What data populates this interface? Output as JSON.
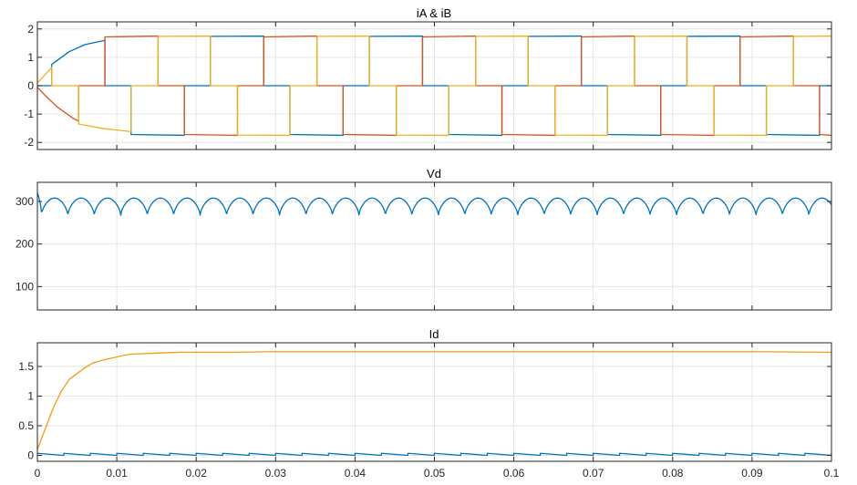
{
  "figure": {
    "xticks": [
      "0",
      "0.01",
      "0.02",
      "0.03",
      "0.04",
      "0.05",
      "0.06",
      "0.07",
      "0.08",
      "0.09",
      "0.1"
    ]
  },
  "colors": {
    "blue": "#0072BD",
    "red": "#D95319",
    "yellow": "#EDB120",
    "orange": "#F39C12",
    "grid": "#e6e6e6",
    "axis": "#262626"
  },
  "chart_data": [
    {
      "type": "line",
      "title": "iA & iB",
      "xlim": [
        0,
        0.1
      ],
      "ylim": [
        -2.25,
        2.25
      ],
      "yticks": [
        2,
        1,
        0,
        -1,
        -2
      ],
      "yticklabels": [
        "2",
        "1",
        "0",
        "-1",
        "-2"
      ],
      "grid": true,
      "series": [
        {
          "color": "#0072BD",
          "points": [
            [
              0,
              0
            ],
            [
              0.0018,
              0
            ],
            [
              0.0018,
              0.75
            ],
            [
              0.004,
              1.2
            ],
            [
              0.006,
              1.45
            ],
            [
              0.0085,
              1.6
            ],
            [
              0.0085,
              0
            ],
            [
              0.0118,
              0
            ],
            [
              0.0118,
              -1.72
            ],
            [
              0.0185,
              -1.75
            ],
            [
              0.0185,
              0
            ],
            [
              0.0218,
              0
            ],
            [
              0.0218,
              1.74
            ],
            [
              0.0285,
              1.75
            ],
            [
              0.0285,
              0
            ],
            [
              0.0318,
              0
            ],
            [
              0.0318,
              -1.72
            ],
            [
              0.0385,
              -1.75
            ],
            [
              0.0385,
              0
            ],
            [
              0.0418,
              0
            ],
            [
              0.0418,
              1.74
            ],
            [
              0.0485,
              1.75
            ],
            [
              0.0485,
              0
            ],
            [
              0.0518,
              0
            ],
            [
              0.0518,
              -1.72
            ],
            [
              0.0585,
              -1.75
            ],
            [
              0.0585,
              0
            ],
            [
              0.0618,
              0
            ],
            [
              0.0618,
              1.74
            ],
            [
              0.0685,
              1.75
            ],
            [
              0.0685,
              0
            ],
            [
              0.0718,
              0
            ],
            [
              0.0718,
              -1.72
            ],
            [
              0.0785,
              -1.75
            ],
            [
              0.0785,
              0
            ],
            [
              0.0818,
              0
            ],
            [
              0.0818,
              1.74
            ],
            [
              0.0885,
              1.75
            ],
            [
              0.0885,
              0
            ],
            [
              0.0918,
              0
            ],
            [
              0.0918,
              -1.72
            ],
            [
              0.0985,
              -1.75
            ],
            [
              0.0985,
              0
            ],
            [
              0.1,
              0
            ]
          ]
        },
        {
          "color": "#D95319",
          "points": [
            [
              0,
              -0.05
            ],
            [
              0.001,
              -0.35
            ],
            [
              0.0025,
              -0.75
            ],
            [
              0.0045,
              -1.15
            ],
            [
              0.0052,
              -1.25
            ],
            [
              0.0052,
              0
            ],
            [
              0.0085,
              0
            ],
            [
              0.0085,
              1.72
            ],
            [
              0.0152,
              1.75
            ],
            [
              0.0152,
              0
            ],
            [
              0.0185,
              0
            ],
            [
              0.0185,
              -1.72
            ],
            [
              0.0252,
              -1.75
            ],
            [
              0.0252,
              0
            ],
            [
              0.0285,
              0
            ],
            [
              0.0285,
              1.72
            ],
            [
              0.0352,
              1.75
            ],
            [
              0.0352,
              0
            ],
            [
              0.0385,
              0
            ],
            [
              0.0385,
              -1.72
            ],
            [
              0.0452,
              -1.75
            ],
            [
              0.0452,
              0
            ],
            [
              0.0485,
              0
            ],
            [
              0.0485,
              1.72
            ],
            [
              0.0552,
              1.75
            ],
            [
              0.0552,
              0
            ],
            [
              0.0585,
              0
            ],
            [
              0.0585,
              -1.72
            ],
            [
              0.0652,
              -1.75
            ],
            [
              0.0652,
              0
            ],
            [
              0.0685,
              0
            ],
            [
              0.0685,
              1.72
            ],
            [
              0.0752,
              1.75
            ],
            [
              0.0752,
              0
            ],
            [
              0.0785,
              0
            ],
            [
              0.0785,
              -1.72
            ],
            [
              0.0852,
              -1.75
            ],
            [
              0.0852,
              0
            ],
            [
              0.0885,
              0
            ],
            [
              0.0885,
              1.72
            ],
            [
              0.0952,
              1.75
            ],
            [
              0.0952,
              0
            ],
            [
              0.0985,
              0
            ],
            [
              0.0985,
              -1.72
            ],
            [
              0.1,
              -1.75
            ]
          ]
        },
        {
          "color": "#EDB120",
          "points": [
            [
              0,
              0.1
            ],
            [
              0.001,
              0.4
            ],
            [
              0.0018,
              0.65
            ],
            [
              0.0018,
              0
            ],
            [
              0.0052,
              0
            ],
            [
              0.0052,
              -1.35
            ],
            [
              0.008,
              -1.5
            ],
            [
              0.0118,
              -1.62
            ],
            [
              0.0118,
              0
            ],
            [
              0.0152,
              0
            ],
            [
              0.0152,
              1.74
            ],
            [
              0.0218,
              1.75
            ],
            [
              0.0218,
              0
            ],
            [
              0.0252,
              0
            ],
            [
              0.0252,
              -1.74
            ],
            [
              0.0318,
              -1.75
            ],
            [
              0.0318,
              0
            ],
            [
              0.0352,
              0
            ],
            [
              0.0352,
              1.74
            ],
            [
              0.0418,
              1.75
            ],
            [
              0.0418,
              0
            ],
            [
              0.0452,
              0
            ],
            [
              0.0452,
              -1.74
            ],
            [
              0.0518,
              -1.75
            ],
            [
              0.0518,
              0
            ],
            [
              0.0552,
              0
            ],
            [
              0.0552,
              1.74
            ],
            [
              0.0618,
              1.75
            ],
            [
              0.0618,
              0
            ],
            [
              0.0652,
              0
            ],
            [
              0.0652,
              -1.74
            ],
            [
              0.0718,
              -1.75
            ],
            [
              0.0718,
              0
            ],
            [
              0.0752,
              0
            ],
            [
              0.0752,
              1.74
            ],
            [
              0.0818,
              1.75
            ],
            [
              0.0818,
              0
            ],
            [
              0.0852,
              0
            ],
            [
              0.0852,
              -1.74
            ],
            [
              0.0918,
              -1.75
            ],
            [
              0.0918,
              0
            ],
            [
              0.0952,
              0
            ],
            [
              0.0952,
              1.74
            ],
            [
              0.1,
              1.75
            ]
          ]
        }
      ]
    },
    {
      "type": "line",
      "title": "Vd",
      "xlim": [
        0,
        0.1
      ],
      "ylim": [
        45,
        345
      ],
      "yticks": [
        300,
        200,
        100
      ],
      "yticklabels": [
        "300",
        "200",
        "100"
      ],
      "grid": true,
      "series": [
        {
          "color": "#0072BD",
          "ripple": {
            "start_value": 320,
            "peak": 308,
            "trough": 267,
            "period": 0.003333,
            "phase": 0.0005
          }
        }
      ]
    },
    {
      "type": "line",
      "title": "Id",
      "xlim": [
        0,
        0.1
      ],
      "ylim": [
        -0.1,
        1.9
      ],
      "yticks": [
        1.5,
        1,
        0.5,
        0
      ],
      "yticklabels": [
        "1.5",
        "1",
        "0.5",
        "0"
      ],
      "grid": true,
      "series": [
        {
          "color": "#F39C12",
          "points": [
            [
              0,
              0.1
            ],
            [
              0.001,
              0.45
            ],
            [
              0.002,
              0.8
            ],
            [
              0.003,
              1.08
            ],
            [
              0.004,
              1.28
            ],
            [
              0.005,
              1.38
            ],
            [
              0.006,
              1.48
            ],
            [
              0.007,
              1.56
            ],
            [
              0.008,
              1.6
            ],
            [
              0.009,
              1.63
            ],
            [
              0.01,
              1.66
            ],
            [
              0.011,
              1.69
            ],
            [
              0.012,
              1.71
            ],
            [
              0.014,
              1.72
            ],
            [
              0.016,
              1.73
            ],
            [
              0.018,
              1.74
            ],
            [
              0.02,
              1.74
            ],
            [
              0.025,
              1.74
            ],
            [
              0.03,
              1.75
            ],
            [
              0.04,
              1.75
            ],
            [
              0.05,
              1.75
            ],
            [
              0.06,
              1.75
            ],
            [
              0.07,
              1.75
            ],
            [
              0.08,
              1.75
            ],
            [
              0.09,
              1.75
            ],
            [
              0.1,
              1.74
            ]
          ]
        },
        {
          "color": "#0072BD",
          "sawtooth": {
            "start": 0.0,
            "low": 0.0,
            "high": 0.035,
            "period": 0.003333
          }
        }
      ]
    }
  ]
}
